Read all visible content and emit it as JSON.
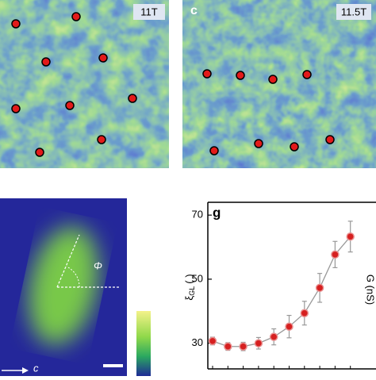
{
  "panels": {
    "b_field": "11T",
    "c_label": "c",
    "c_field": "11.5T",
    "angle": "Φ",
    "axis_dir": "c"
  },
  "chart_data": {
    "type": "line",
    "panel_label": "g",
    "ylabel": {
      "symbol": "ξ",
      "sub": "GL",
      "unit": "( )"
    },
    "y2label": "G (nS)",
    "categories": [
      null,
      null,
      null,
      null,
      null,
      null,
      null,
      null,
      null,
      null
    ],
    "values": [
      30.7,
      29.0,
      29.0,
      30.0,
      32.0,
      35.2,
      39.4,
      47.3,
      57.7,
      63.3
    ],
    "errors": [
      1.2,
      1.2,
      1.3,
      1.8,
      2.5,
      3.5,
      3.7,
      4.5,
      4.1,
      4.8
    ],
    "color": "#d62020",
    "line_color": "#999999",
    "ylim": [
      22,
      74
    ],
    "yticks": [
      30,
      50,
      70
    ]
  }
}
